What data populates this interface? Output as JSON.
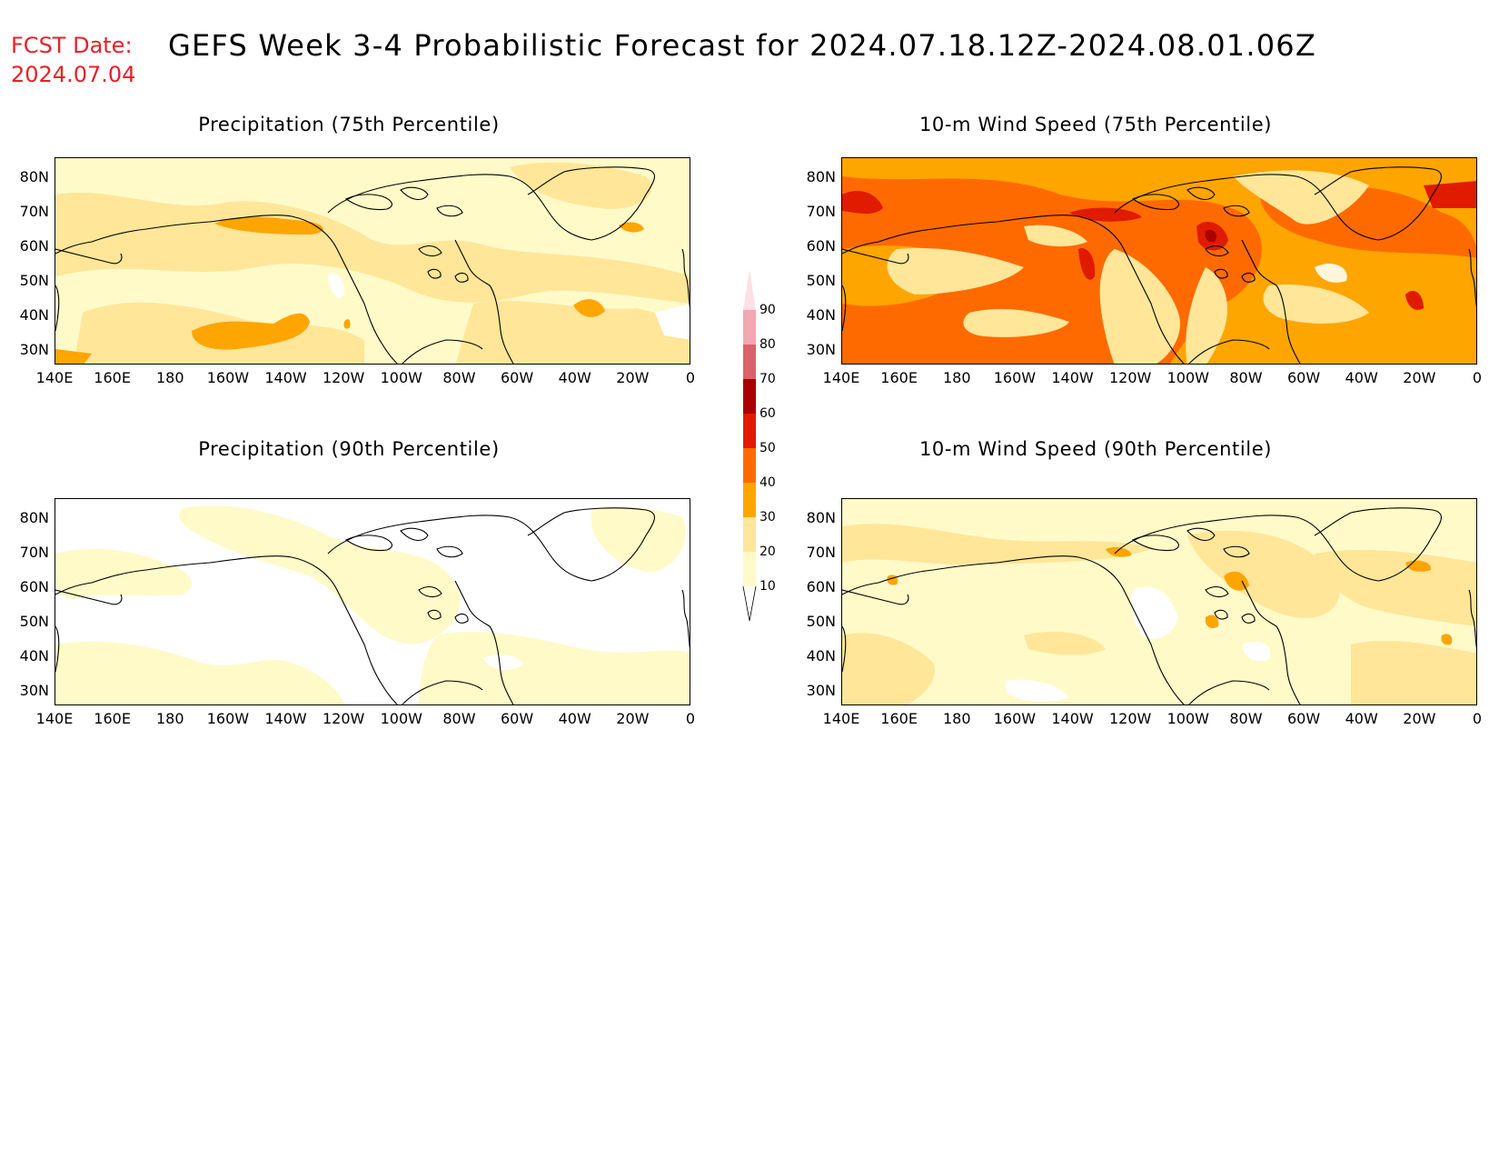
{
  "header": {
    "fcst_label": "FCST Date:",
    "fcst_date": "2024.07.04",
    "title": "GEFS Week 3-4 Probabilistic Forecast for 2024.07.18.12Z-2024.08.01.06Z"
  },
  "axes": {
    "lat_ticks": [
      "80N",
      "70N",
      "60N",
      "50N",
      "40N",
      "30N"
    ],
    "lon_ticks": [
      "140E",
      "160E",
      "180",
      "160W",
      "140W",
      "120W",
      "100W",
      "80W",
      "60W",
      "40W",
      "20W",
      "0"
    ]
  },
  "panels": [
    {
      "title": "Precipitation (75th Percentile)",
      "variable": "precipitation",
      "percentile": 75,
      "dominant_category": "10-20"
    },
    {
      "title": "10-m Wind Speed (75th Percentile)",
      "variable": "wind_speed",
      "percentile": 75,
      "dominant_category": "30-40"
    },
    {
      "title": "Precipitation (90th Percentile)",
      "variable": "precipitation",
      "percentile": 90,
      "dominant_category": "below 10"
    },
    {
      "title": "10-m Wind Speed (90th Percentile)",
      "variable": "wind_speed",
      "percentile": 90,
      "dominant_category": "10-20"
    }
  ],
  "colorbar": {
    "levels": [
      "10",
      "20",
      "30",
      "40",
      "50",
      "60",
      "70",
      "80",
      "90"
    ],
    "colors": [
      "#fffac8",
      "#ffe699",
      "#ffa500",
      "#ff6a00",
      "#e01b00",
      "#aa0000",
      "#d9626b",
      "#f2a8b0",
      "#fde0e4"
    ]
  },
  "palette": {
    "below_10": "#ffffff",
    "c10": "#fffac8",
    "c20": "#ffe699",
    "c30": "#ffa500",
    "c40": "#ff6a00",
    "c50": "#e01b00",
    "c60": "#aa0000",
    "title_red": "#e8202a"
  }
}
